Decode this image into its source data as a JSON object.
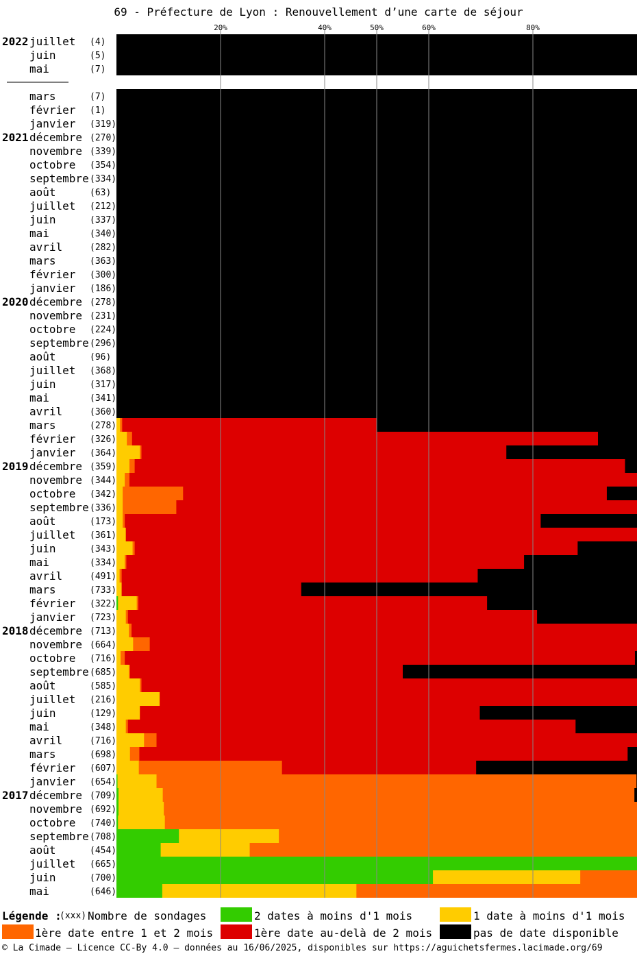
{
  "title": "69 - Préfecture de Lyon : Renouvellement d’une carte de séjour",
  "legend": {
    "heading": "Légende :",
    "count_hint": "(xxx)",
    "count_label": "Nombre de sondages",
    "green": "2 dates à moins d'1 mois",
    "yellow": "1 date à moins d'1 mois",
    "orange": "1ère date entre 1 et 2 mois",
    "red": "1ère date au-delà de 2 mois",
    "black": "pas de date disponible"
  },
  "footer": "© La Cimade — Licence CC-By 4.0 — données au 16/06/2025, disponibles sur https://aguichetsfermes.lacimade.org/69",
  "colors": {
    "green": "#33cc00",
    "yellow": "#ffcc00",
    "orange": "#ff6600",
    "red": "#dd0000",
    "black": "#000000",
    "grid": "#888888"
  },
  "chart_data": {
    "type": "bar",
    "orientation": "horizontal-stacked-100",
    "title": "69 - Préfecture de Lyon : Renouvellement d’une carte de séjour",
    "x_ticks": [
      20,
      40,
      50,
      60,
      80
    ],
    "x_tick_labels": [
      "20%",
      "40%",
      "50%",
      "60%",
      "80%"
    ],
    "xlim": [
      0,
      100
    ],
    "series_order": [
      "green",
      "yellow",
      "orange",
      "red",
      "black"
    ],
    "rows": [
      {
        "year": "2022",
        "month": "juillet",
        "count": "(4)",
        "values": [
          0,
          0,
          0,
          0,
          100
        ]
      },
      {
        "year": "",
        "month": "juin",
        "count": "(5)",
        "values": [
          0,
          0,
          0,
          0,
          100
        ]
      },
      {
        "year": "",
        "month": "mai",
        "count": "(7)",
        "values": [
          0,
          0,
          0,
          0,
          100
        ]
      },
      {
        "gap": true
      },
      {
        "year": "",
        "month": "mars",
        "count": "(7)",
        "values": [
          0,
          0,
          0,
          0,
          100
        ]
      },
      {
        "year": "",
        "month": "février",
        "count": "(1)",
        "values": [
          0,
          0,
          0,
          0,
          100
        ]
      },
      {
        "year": "",
        "month": "janvier",
        "count": "(319)",
        "values": [
          0,
          0,
          0,
          0,
          100
        ]
      },
      {
        "year": "2021",
        "month": "décembre",
        "count": "(270)",
        "values": [
          0,
          0,
          0,
          0,
          100
        ]
      },
      {
        "year": "",
        "month": "novembre",
        "count": "(339)",
        "values": [
          0,
          0,
          0,
          0,
          100
        ]
      },
      {
        "year": "",
        "month": "octobre",
        "count": "(354)",
        "values": [
          0,
          0,
          0,
          0,
          100
        ]
      },
      {
        "year": "",
        "month": "septembre",
        "count": "(334)",
        "values": [
          0,
          0,
          0,
          0,
          100
        ]
      },
      {
        "year": "",
        "month": "août",
        "count": "(63)",
        "values": [
          0,
          0,
          0,
          0,
          100
        ]
      },
      {
        "year": "",
        "month": "juillet",
        "count": "(212)",
        "values": [
          0,
          0,
          0,
          0,
          100
        ]
      },
      {
        "year": "",
        "month": "juin",
        "count": "(337)",
        "values": [
          0,
          0,
          0,
          0,
          100
        ]
      },
      {
        "year": "",
        "month": "mai",
        "count": "(340)",
        "values": [
          0,
          0,
          0,
          0,
          100
        ]
      },
      {
        "year": "",
        "month": "avril",
        "count": "(282)",
        "values": [
          0,
          0,
          0,
          0,
          100
        ]
      },
      {
        "year": "",
        "month": "mars",
        "count": "(363)",
        "values": [
          0,
          0,
          0,
          0,
          100
        ]
      },
      {
        "year": "",
        "month": "février",
        "count": "(300)",
        "values": [
          0,
          0,
          0,
          0,
          100
        ]
      },
      {
        "year": "",
        "month": "janvier",
        "count": "(186)",
        "values": [
          0,
          0,
          0,
          0,
          100
        ]
      },
      {
        "year": "2020",
        "month": "décembre",
        "count": "(278)",
        "values": [
          0,
          0,
          0,
          0,
          100
        ]
      },
      {
        "year": "",
        "month": "novembre",
        "count": "(231)",
        "values": [
          0,
          0,
          0,
          0,
          100
        ]
      },
      {
        "year": "",
        "month": "octobre",
        "count": "(224)",
        "values": [
          0,
          0,
          0,
          0,
          100
        ]
      },
      {
        "year": "",
        "month": "septembre",
        "count": "(296)",
        "values": [
          0,
          0,
          0,
          0,
          100
        ]
      },
      {
        "year": "",
        "month": "août",
        "count": "(96)",
        "values": [
          0,
          0,
          0,
          0,
          100
        ]
      },
      {
        "year": "",
        "month": "juillet",
        "count": "(368)",
        "values": [
          0,
          0,
          0,
          0,
          100
        ]
      },
      {
        "year": "",
        "month": "juin",
        "count": "(317)",
        "values": [
          0,
          0,
          0,
          0,
          100
        ]
      },
      {
        "year": "",
        "month": "mai",
        "count": "(341)",
        "values": [
          0,
          0,
          0,
          0,
          100
        ]
      },
      {
        "year": "",
        "month": "avril",
        "count": "(360)",
        "values": [
          0,
          0,
          0,
          0,
          100
        ]
      },
      {
        "year": "",
        "month": "mars",
        "count": "(278)",
        "values": [
          0,
          0.7,
          0.4,
          48.9,
          50.0
        ]
      },
      {
        "year": "",
        "month": "février",
        "count": "(326)",
        "values": [
          0,
          2.0,
          1.0,
          89.5,
          7.5
        ]
      },
      {
        "year": "",
        "month": "janvier",
        "count": "(364)",
        "values": [
          0,
          4.5,
          0.3,
          70.1,
          25.1
        ]
      },
      {
        "year": "2019",
        "month": "décembre",
        "count": "(359)",
        "values": [
          0,
          2.5,
          1.0,
          94.2,
          2.3
        ]
      },
      {
        "year": "",
        "month": "novembre",
        "count": "(344)",
        "values": [
          0,
          1.6,
          0.9,
          97.5,
          0
        ]
      },
      {
        "year": "",
        "month": "octobre",
        "count": "(342)",
        "values": [
          0,
          1.2,
          11.6,
          81.4,
          5.8
        ]
      },
      {
        "year": "",
        "month": "septembre",
        "count": "(336)",
        "values": [
          0,
          1.2,
          10.3,
          88.5,
          0
        ]
      },
      {
        "year": "",
        "month": "août",
        "count": "(173)",
        "values": [
          0,
          1.2,
          0.4,
          79.9,
          18.5
        ]
      },
      {
        "year": "",
        "month": "juillet",
        "count": "(361)",
        "values": [
          0,
          1.8,
          0,
          98.2,
          0
        ]
      },
      {
        "year": "",
        "month": "juin",
        "count": "(343)",
        "values": [
          0,
          3.1,
          0.4,
          85.1,
          11.4
        ]
      },
      {
        "year": "",
        "month": "mai",
        "count": "(334)",
        "values": [
          0,
          1.6,
          0.3,
          76.4,
          21.7
        ]
      },
      {
        "year": "",
        "month": "avril",
        "count": "(491)",
        "values": [
          0,
          0.6,
          0.4,
          68.4,
          30.6
        ]
      },
      {
        "year": "",
        "month": "mars",
        "count": "(733)",
        "values": [
          0,
          1.0,
          0,
          34.5,
          64.5
        ]
      },
      {
        "year": "",
        "month": "février",
        "count": "(322)",
        "values": [
          0.3,
          3.6,
          0.3,
          67.0,
          28.8
        ]
      },
      {
        "year": "",
        "month": "janvier",
        "count": "(723)",
        "values": [
          0,
          1.8,
          0.4,
          78.6,
          19.2
        ]
      },
      {
        "year": "2018",
        "month": "décembre",
        "count": "(713)",
        "values": [
          0,
          2.4,
          0.5,
          97.1,
          0
        ]
      },
      {
        "year": "",
        "month": "novembre",
        "count": "(664)",
        "values": [
          0,
          3.2,
          3.2,
          93.6,
          0
        ]
      },
      {
        "year": "",
        "month": "octobre",
        "count": "(716)",
        "values": [
          0,
          0.8,
          0.8,
          98.0,
          0.4
        ]
      },
      {
        "year": "",
        "month": "septembre",
        "count": "(685)",
        "values": [
          0,
          2.4,
          0.2,
          52.4,
          45.0
        ]
      },
      {
        "year": "",
        "month": "août",
        "count": "(585)",
        "values": [
          0,
          4.5,
          0.3,
          95.2,
          0
        ]
      },
      {
        "year": "",
        "month": "juillet",
        "count": "(216)",
        "values": [
          0,
          8.3,
          0,
          91.7,
          0
        ]
      },
      {
        "year": "",
        "month": "juin",
        "count": "(129)",
        "values": [
          0,
          4.5,
          0,
          65.3,
          30.2
        ]
      },
      {
        "year": "",
        "month": "mai",
        "count": "(348)",
        "values": [
          0,
          1.8,
          0.4,
          86.0,
          11.8
        ]
      },
      {
        "year": "",
        "month": "avril",
        "count": "(716)",
        "values": [
          0,
          5.3,
          2.4,
          92.3,
          0
        ]
      },
      {
        "year": "",
        "month": "mars",
        "count": "(698)",
        "values": [
          0,
          2.6,
          1.8,
          93.8,
          1.8
        ]
      },
      {
        "year": "",
        "month": "février",
        "count": "(607)",
        "values": [
          0,
          4.3,
          27.5,
          37.3,
          30.9
        ]
      },
      {
        "year": "",
        "month": "janvier",
        "count": "(654)",
        "values": [
          0.2,
          7.5,
          92.2,
          0,
          0.1
        ]
      },
      {
        "year": "2017",
        "month": "décembre",
        "count": "(709)",
        "values": [
          0.4,
          8.5,
          90.6,
          0,
          0.5
        ]
      },
      {
        "year": "",
        "month": "novembre",
        "count": "(692)",
        "values": [
          0.4,
          8.7,
          90.9,
          0,
          0
        ]
      },
      {
        "year": "",
        "month": "octobre",
        "count": "(740)",
        "values": [
          0.3,
          9.0,
          90.7,
          0,
          0
        ]
      },
      {
        "year": "",
        "month": "septembre",
        "count": "(708)",
        "values": [
          12.0,
          19.2,
          68.8,
          0,
          0
        ]
      },
      {
        "year": "",
        "month": "août",
        "count": "(454)",
        "values": [
          8.5,
          17.1,
          74.4,
          0,
          0
        ]
      },
      {
        "year": "",
        "month": "juillet",
        "count": "(665)",
        "values": [
          100,
          0,
          0,
          0,
          0
        ]
      },
      {
        "year": "",
        "month": "juin",
        "count": "(700)",
        "values": [
          60.8,
          28.3,
          10.9,
          0,
          0
        ]
      },
      {
        "year": "",
        "month": "mai",
        "count": "(646)",
        "values": [
          8.8,
          37.3,
          53.9,
          0,
          0
        ]
      }
    ]
  }
}
